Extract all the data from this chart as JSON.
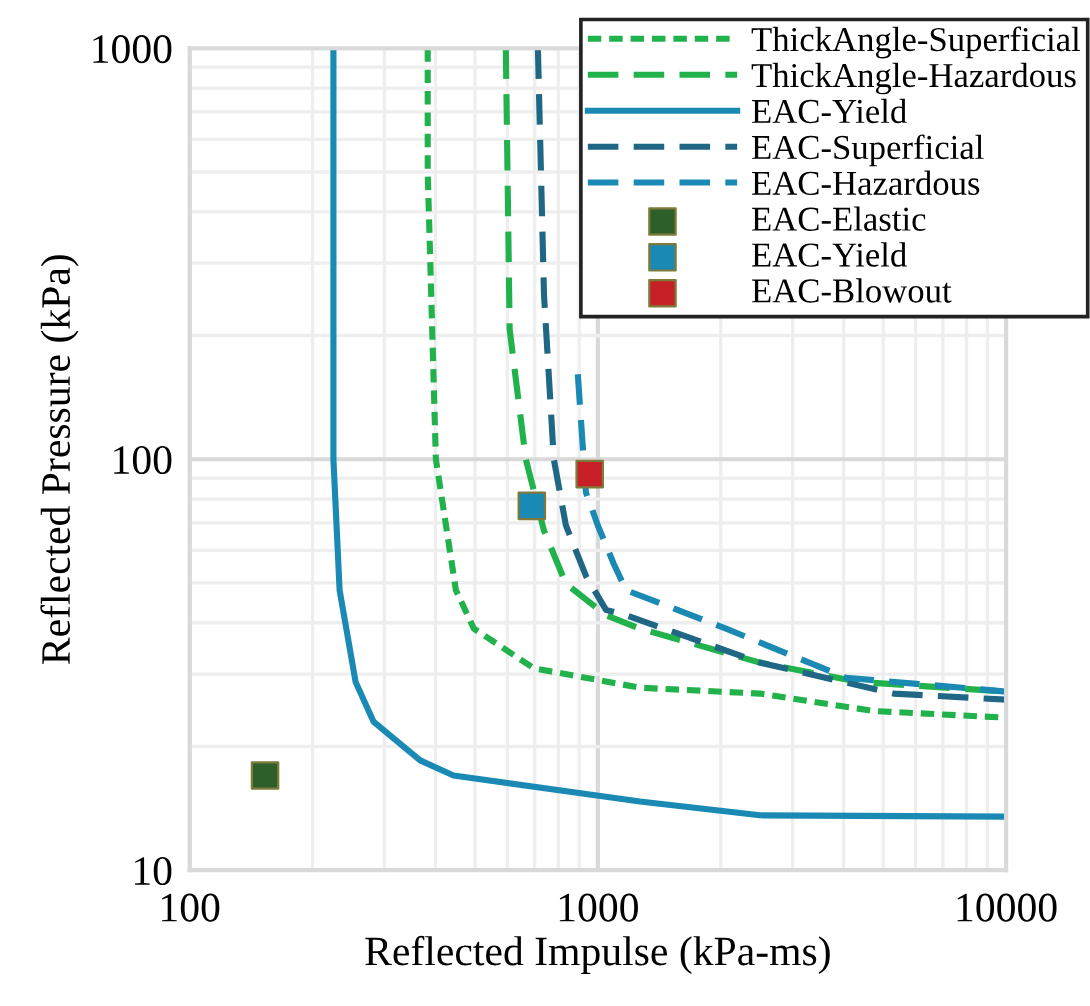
{
  "chart_data": {
    "type": "line",
    "xlabel": "Reflected Impulse (kPa-ms)",
    "ylabel": "Reflected Pressure (kPa)",
    "log": "xy",
    "xlim": [
      100,
      10000
    ],
    "xticks": [
      100,
      1000,
      10000
    ],
    "ylim": [
      10,
      1000
    ],
    "yticks": [
      10,
      100,
      1000
    ],
    "grid": true,
    "legend": "top right",
    "series": [
      {
        "name": "ThickAngle-Superficial",
        "color": "#21b24b",
        "line_style": "dotted",
        "x": [
          383,
          383,
          401,
          449,
          497,
          697,
          1268,
          2494,
          4745,
          10000
        ],
        "values": [
          1000,
          500,
          100,
          48,
          38.7,
          31,
          27.8,
          26.9,
          24.4,
          23.5
        ]
      },
      {
        "name": "ThickAngle-Hazardous",
        "color": "#21b24b",
        "line_style": "dashed",
        "x": [
          595,
          608,
          666,
          738,
          835,
          1047,
          1268,
          2494,
          4386,
          10000
        ],
        "values": [
          1000,
          207,
          100,
          67,
          49.8,
          41.7,
          38.7,
          32,
          28.7,
          27.2
        ]
      },
      {
        "name": "EAC-Yield",
        "color": "#1a8ab5",
        "line_style": "solid",
        "x": [
          225,
          225,
          233,
          255,
          282,
          367,
          443,
          1268,
          2494,
          10000
        ],
        "values": [
          1000,
          100,
          48,
          28.7,
          23,
          18.5,
          17,
          14.7,
          13.6,
          13.5
        ]
      },
      {
        "name": "EAC-Superficial",
        "color": "#1f6785",
        "line_style": "dashed",
        "x": [
          713,
          738,
          780,
          835,
          935,
          1047,
          1173,
          2494,
          5307,
          10000
        ],
        "values": [
          1000,
          251,
          100,
          69,
          52,
          43,
          41.7,
          32,
          26.9,
          26
        ]
      },
      {
        "name": "EAC-Hazardous",
        "color": "#1a8ab5",
        "line_style": "dashed",
        "x": [
          893,
          935,
          1000,
          1094,
          1173,
          2061,
          4055,
          10000
        ],
        "values": [
          161,
          83,
          69,
          55.6,
          48,
          38.7,
          29.4,
          27.2
        ]
      },
      {
        "name": "EAC-Elastic",
        "type": "scatter",
        "marker": "square",
        "color": "#2e5e2a",
        "x": [
          153
        ],
        "values": [
          17
        ]
      },
      {
        "name": "EAC-Yield",
        "type": "scatter",
        "marker": "square",
        "color": "#1a8ab5",
        "x": [
          689
        ],
        "values": [
          77
        ]
      },
      {
        "name": "EAC-Blowout",
        "type": "scatter",
        "marker": "square",
        "color": "#c62026",
        "x": [
          955
        ],
        "values": [
          92
        ]
      }
    ]
  }
}
